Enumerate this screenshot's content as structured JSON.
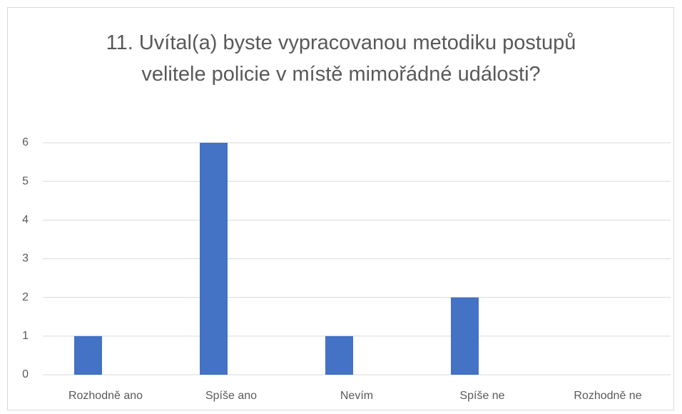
{
  "chart_data": {
    "type": "bar",
    "title": "11. Uvítal(a) byste vypracovanou metodiku postupů velitele policie v místě mimořádné události?",
    "categories": [
      "Rozhodně ano",
      "Spíše ano",
      "Nevím",
      "Spíše ne",
      "Rozhodně ne"
    ],
    "values": [
      1,
      6,
      1,
      2,
      0
    ],
    "color": "#4472c4",
    "ylim": [
      0,
      6
    ],
    "yticks": [
      0,
      1,
      2,
      3,
      4,
      5,
      6
    ],
    "grid": true
  }
}
